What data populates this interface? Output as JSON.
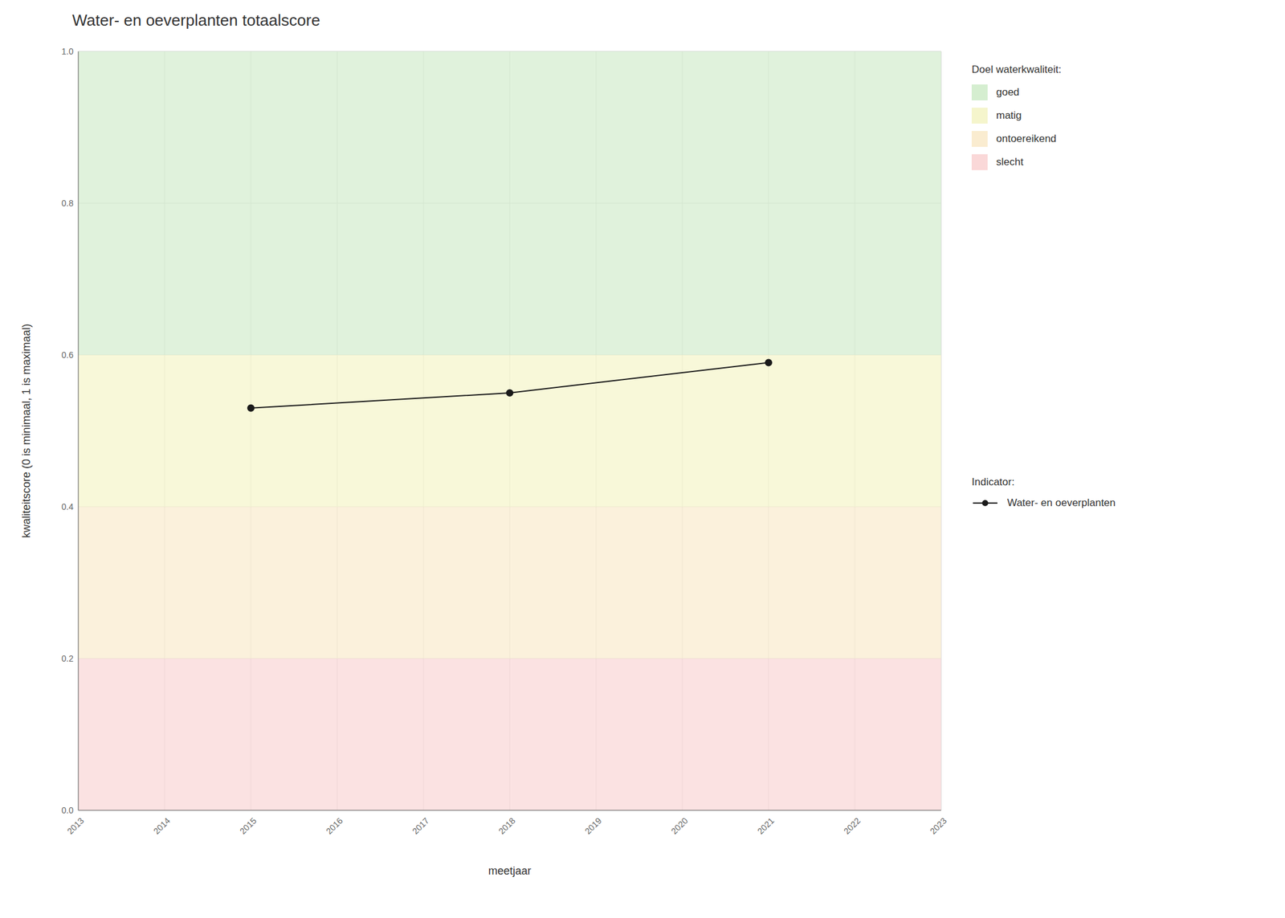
{
  "chart_data": {
    "type": "line",
    "title": "Water- en oeverplanten totaalscore",
    "x_label": "meetjaar",
    "y_label": "kwaliteitscore (0 is minimaal, 1 is maximaal)",
    "x": [
      2015,
      2018,
      2021
    ],
    "series": [
      {
        "name": "Water- en oeverplanten",
        "color": "#1a1a1a",
        "marker": "circle",
        "values": [
          0.53,
          0.55,
          0.59
        ]
      }
    ],
    "series_title": "Indicator:",
    "xlim": [
      2013,
      2023
    ],
    "ylim": [
      0.0,
      1.0
    ],
    "xticks": [
      2013,
      2014,
      2015,
      2016,
      2017,
      2018,
      2019,
      2020,
      2021,
      2022,
      2023
    ],
    "yticks": [
      {
        "value": 0.0,
        "label": "0.0"
      },
      0.2,
      0.4,
      0.6,
      0.8,
      {
        "value": 1.0,
        "label": "1.0"
      }
    ],
    "zones_title": "Doel waterkwaliteit:",
    "zones": [
      {
        "name": "goed",
        "from": 0.6,
        "to": 1.0,
        "color": "#d5eed0"
      },
      {
        "name": "matig",
        "from": 0.4,
        "to": 0.6,
        "color": "#f5f5cc"
      },
      {
        "name": "ontoereikend",
        "from": 0.2,
        "to": 0.4,
        "color": "#faecd0"
      },
      {
        "name": "slecht",
        "from": 0.0,
        "to": 0.2,
        "color": "#fad8d8"
      }
    ],
    "grid": true
  }
}
